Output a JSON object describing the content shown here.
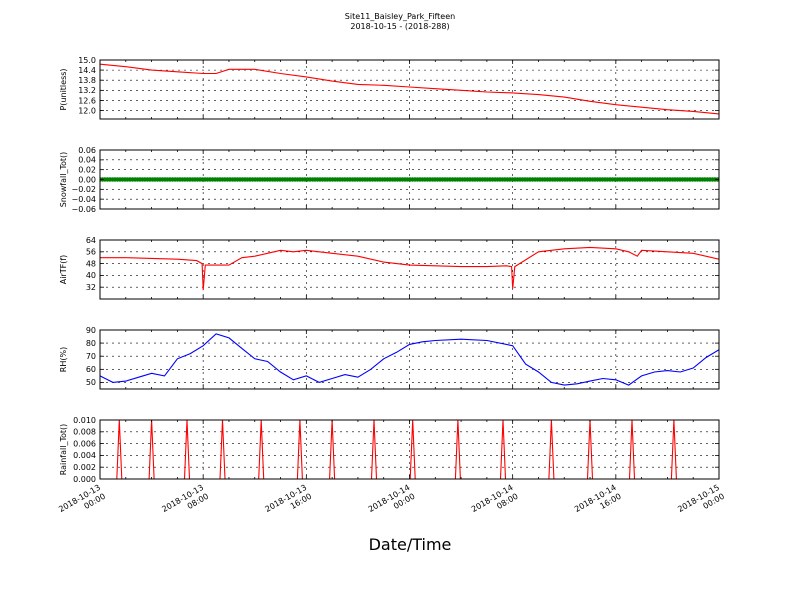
{
  "figure": {
    "title": "Site11_Baisley_Park_Fifteen",
    "subtitle": "2018-10-15 - (2018-288)",
    "xlabel": "Date/Time"
  },
  "x_axis": {
    "start": "2018-10-13 00:00",
    "end": "2018-10-15 00:00",
    "tick_labels": [
      {
        "t": "2018-10-13 00:00",
        "line1": "2018-10-13",
        "line2": "00:00"
      },
      {
        "t": "2018-10-13 08:00",
        "line1": "2018-10-13",
        "line2": "08:00"
      },
      {
        "t": "2018-10-13 16:00",
        "line1": "2018-10-13",
        "line2": "16:00"
      },
      {
        "t": "2018-10-14 00:00",
        "line1": "2018-10-14",
        "line2": "00:00"
      },
      {
        "t": "2018-10-14 08:00",
        "line1": "2018-10-14",
        "line2": "08:00"
      },
      {
        "t": "2018-10-14 16:00",
        "line1": "2018-10-14",
        "line2": "16:00"
      },
      {
        "t": "2018-10-15 00:00",
        "line1": "2018-10-15",
        "line2": "00:00"
      }
    ]
  },
  "chart_data": [
    {
      "type": "line",
      "ylabel": "P(unitless)",
      "ylim": [
        11.5,
        15.0
      ],
      "yticks": [
        12.0,
        12.6,
        13.2,
        13.8,
        14.4,
        15.0
      ],
      "ytick_labels": [
        "12.0",
        "12.6",
        "13.2",
        "13.8",
        "14.4",
        "15.0"
      ],
      "grid": true,
      "color": "#ff0000",
      "x": [
        "2018-10-13 00:00",
        "2018-10-13 02:00",
        "2018-10-13 04:00",
        "2018-10-13 06:00",
        "2018-10-13 08:00",
        "2018-10-13 09:00",
        "2018-10-13 10:00",
        "2018-10-13 12:00",
        "2018-10-13 14:00",
        "2018-10-13 16:00",
        "2018-10-13 18:00",
        "2018-10-13 20:00",
        "2018-10-13 22:00",
        "2018-10-14 00:00",
        "2018-10-14 02:00",
        "2018-10-14 04:00",
        "2018-10-14 06:00",
        "2018-10-14 08:00",
        "2018-10-14 10:00",
        "2018-10-14 12:00",
        "2018-10-14 14:00",
        "2018-10-14 16:00",
        "2018-10-14 18:00",
        "2018-10-14 20:00",
        "2018-10-14 22:00",
        "2018-10-15 00:00"
      ],
      "y": [
        14.75,
        14.6,
        14.4,
        14.3,
        14.2,
        14.2,
        14.45,
        14.45,
        14.2,
        14.0,
        13.75,
        13.55,
        13.5,
        13.4,
        13.3,
        13.2,
        13.1,
        13.05,
        12.95,
        12.8,
        12.55,
        12.35,
        12.2,
        12.05,
        11.95,
        11.8
      ]
    },
    {
      "type": "scatter",
      "ylabel": "Snowfall_Tot()",
      "ylim": [
        -0.06,
        0.06
      ],
      "yticks": [
        -0.06,
        -0.04,
        -0.02,
        0.0,
        0.02,
        0.04,
        0.06
      ],
      "ytick_labels": [
        "−0.06",
        "−0.04",
        "−0.02",
        "0.00",
        "0.02",
        "0.04",
        "0.06"
      ],
      "grid": true,
      "color": "#008000",
      "constant_value": 0.0,
      "x_range": [
        "2018-10-13 00:00",
        "2018-10-15 00:00"
      ]
    },
    {
      "type": "line",
      "ylabel": "AirTF(f)",
      "ylim": [
        24,
        64
      ],
      "yticks": [
        32,
        40,
        48,
        56,
        64
      ],
      "ytick_labels": [
        "32",
        "40",
        "48",
        "56",
        "64"
      ],
      "grid": true,
      "color": "#ff0000",
      "x": [
        "2018-10-13 00:00",
        "2018-10-13 02:00",
        "2018-10-13 04:00",
        "2018-10-13 06:00",
        "2018-10-13 07:30",
        "2018-10-13 07:55",
        "2018-10-13 08:00",
        "2018-10-13 08:10",
        "2018-10-13 10:00",
        "2018-10-13 11:00",
        "2018-10-13 12:00",
        "2018-10-13 13:00",
        "2018-10-13 14:00",
        "2018-10-13 15:00",
        "2018-10-13 16:00",
        "2018-10-13 17:00",
        "2018-10-13 18:00",
        "2018-10-13 20:00",
        "2018-10-13 22:00",
        "2018-10-14 00:00",
        "2018-10-14 02:00",
        "2018-10-14 04:00",
        "2018-10-14 06:00",
        "2018-10-14 07:30",
        "2018-10-14 07:55",
        "2018-10-14 08:00",
        "2018-10-14 08:10",
        "2018-10-14 10:00",
        "2018-10-14 12:00",
        "2018-10-14 14:00",
        "2018-10-14 16:00",
        "2018-10-14 17:00",
        "2018-10-14 17:40",
        "2018-10-14 18:00",
        "2018-10-14 20:00",
        "2018-10-14 22:00",
        "2018-10-15 00:00"
      ],
      "y": [
        52,
        52,
        51.5,
        51,
        50,
        48,
        30,
        47,
        47,
        52,
        53,
        55,
        57,
        56,
        57,
        56,
        55,
        53,
        49,
        47,
        46.5,
        46,
        46,
        46.5,
        46,
        31,
        46,
        56,
        58,
        59,
        58,
        56,
        53,
        57,
        56,
        55,
        51
      ]
    },
    {
      "type": "line",
      "ylabel": "RH(%)",
      "ylim": [
        45,
        90
      ],
      "yticks": [
        50,
        60,
        70,
        80,
        90
      ],
      "ytick_labels": [
        "50",
        "60",
        "70",
        "80",
        "90"
      ],
      "grid": true,
      "color": "#0000ff",
      "x": [
        "2018-10-13 00:00",
        "2018-10-13 01:00",
        "2018-10-13 02:00",
        "2018-10-13 03:00",
        "2018-10-13 04:00",
        "2018-10-13 05:00",
        "2018-10-13 06:00",
        "2018-10-13 07:00",
        "2018-10-13 08:00",
        "2018-10-13 09:00",
        "2018-10-13 10:00",
        "2018-10-13 11:00",
        "2018-10-13 12:00",
        "2018-10-13 13:00",
        "2018-10-13 14:00",
        "2018-10-13 15:00",
        "2018-10-13 16:00",
        "2018-10-13 17:00",
        "2018-10-13 18:00",
        "2018-10-13 19:00",
        "2018-10-13 20:00",
        "2018-10-13 21:00",
        "2018-10-13 22:00",
        "2018-10-13 23:00",
        "2018-10-14 00:00",
        "2018-10-14 01:00",
        "2018-10-14 02:00",
        "2018-10-14 04:00",
        "2018-10-14 06:00",
        "2018-10-14 08:00",
        "2018-10-14 09:00",
        "2018-10-14 10:00",
        "2018-10-14 11:00",
        "2018-10-14 12:00",
        "2018-10-14 13:00",
        "2018-10-14 14:00",
        "2018-10-14 15:00",
        "2018-10-14 16:00",
        "2018-10-14 17:00",
        "2018-10-14 18:00",
        "2018-10-14 19:00",
        "2018-10-14 20:00",
        "2018-10-14 21:00",
        "2018-10-14 22:00",
        "2018-10-14 23:00",
        "2018-10-15 00:00"
      ],
      "y": [
        55,
        50,
        51,
        54,
        57,
        55,
        68,
        72,
        78,
        87,
        84,
        76,
        68,
        66,
        58,
        52,
        55,
        50,
        53,
        56,
        54,
        60,
        68,
        73,
        79,
        81,
        82,
        83,
        82,
        78,
        64,
        58,
        50,
        48,
        49,
        51,
        53,
        52,
        48,
        55,
        58,
        59,
        58,
        61,
        69,
        75
      ]
    },
    {
      "type": "line",
      "ylabel": "Rainfall_Tot()",
      "ylim": [
        0.0,
        0.01
      ],
      "yticks": [
        0.0,
        0.002,
        0.004,
        0.006,
        0.008,
        0.01
      ],
      "ytick_labels": [
        "0.000",
        "0.002",
        "0.004",
        "0.006",
        "0.008",
        "0.010"
      ],
      "grid": true,
      "color": "#ff0000",
      "spike_value": 0.01,
      "spike_times": [
        "2018-10-13 01:30",
        "2018-10-13 04:00",
        "2018-10-13 06:45",
        "2018-10-13 09:30",
        "2018-10-13 12:30",
        "2018-10-13 15:30",
        "2018-10-13 18:00",
        "2018-10-13 21:15",
        "2018-10-14 00:15",
        "2018-10-14 03:45",
        "2018-10-14 07:15",
        "2018-10-14 11:00",
        "2018-10-14 14:00",
        "2018-10-14 17:15",
        "2018-10-14 20:30"
      ]
    }
  ]
}
